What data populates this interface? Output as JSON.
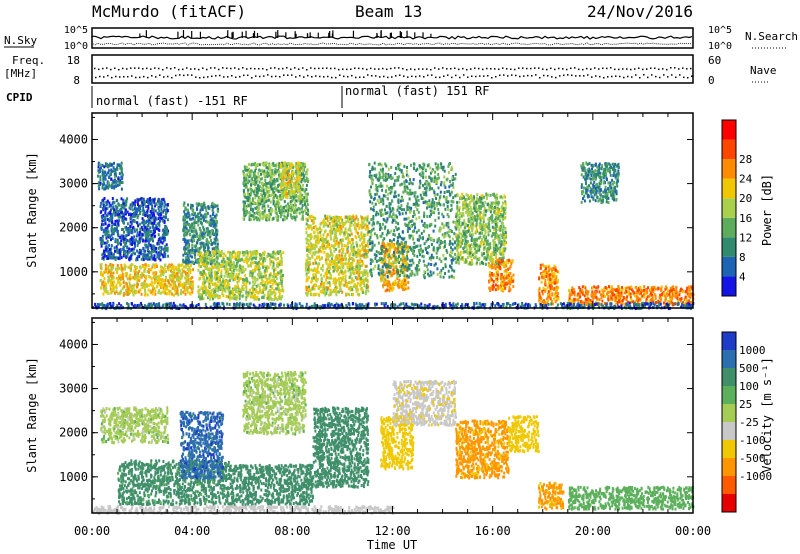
{
  "header": {
    "station": "McMurdo (fitACF)",
    "beam": "Beam 13",
    "date": "24/Nov/2016"
  },
  "left_labels": {
    "nsky": "N.Sky",
    "freq": "Freq.",
    "freq_unit": "[MHz]",
    "cpid": "CPID"
  },
  "right_labels": {
    "nsearch": "N.Search",
    "nave": "Nave"
  },
  "cpid_segments": [
    {
      "label": "normal (fast) -151 RF",
      "start_hour": 0,
      "end_hour": 10
    },
    {
      "label": "normal (fast) 151 RF",
      "start_hour": 10,
      "end_hour": 24
    }
  ],
  "noise_panel": {
    "left_ticks": [
      "10^5",
      "10^0"
    ],
    "right_ticks": [
      "10^5",
      "10^0"
    ]
  },
  "freq_panel": {
    "left_ticks": [
      "18",
      "8"
    ],
    "right_ticks": [
      "60",
      "0"
    ]
  },
  "range_axis": {
    "label": "Slant Range [km]",
    "ticks": [
      "1000",
      "2000",
      "3000",
      "4000"
    ],
    "tick_values": [
      1000,
      2000,
      3000,
      4000
    ],
    "min": 180,
    "max": 4600
  },
  "time_axis": {
    "label": "Time UT",
    "ticks": [
      "00:00",
      "04:00",
      "08:00",
      "12:00",
      "16:00",
      "20:00",
      "00:00"
    ],
    "tick_hours": [
      0,
      4,
      8,
      12,
      16,
      20,
      24
    ]
  },
  "power_colorbar": {
    "label": "Power [dB]",
    "ticks": [
      "4",
      "8",
      "12",
      "16",
      "20",
      "24",
      "28"
    ],
    "colors": [
      "#1414e6",
      "#1e64b4",
      "#2f8a6e",
      "#5cac5c",
      "#a8d04c",
      "#f0c800",
      "#ff8c00",
      "#ff4600",
      "#ff0000"
    ]
  },
  "velocity_colorbar": {
    "label": "Velocity [m s⁻¹]",
    "ticks": [
      "1000",
      "500",
      "100",
      "25",
      "-25",
      "-100",
      "-500",
      "-1000"
    ],
    "colors": [
      "#1e3cc8",
      "#2b6fb0",
      "#3f8f6a",
      "#5cb05c",
      "#a5cc55",
      "#c8c8c8",
      "#f0c800",
      "#ff9600",
      "#ff5a00",
      "#e60000"
    ]
  },
  "chart_data": [
    {
      "type": "heatmap",
      "title": "Power",
      "xlabel": "Time UT",
      "ylabel": "Slant Range [km]",
      "xlim": [
        0,
        24
      ],
      "ylim": [
        180,
        4600
      ],
      "colorbar": "Power [dB]",
      "regions": [
        {
          "t0": 0.3,
          "t1": 4.0,
          "r0": 500,
          "r1": 1200,
          "value": 22
        },
        {
          "t0": 0.3,
          "t1": 3.0,
          "r0": 1300,
          "r1": 2700,
          "value": 6
        },
        {
          "t0": 0.2,
          "t1": 1.2,
          "r0": 2900,
          "r1": 3500,
          "value": 8
        },
        {
          "t0": 3.6,
          "t1": 5.0,
          "r0": 1200,
          "r1": 2600,
          "value": 10
        },
        {
          "t0": 4.2,
          "t1": 7.6,
          "r0": 400,
          "r1": 1500,
          "value": 18
        },
        {
          "t0": 6.0,
          "t1": 8.6,
          "r0": 2200,
          "r1": 3500,
          "value": 14
        },
        {
          "t0": 7.5,
          "t1": 8.3,
          "r0": 2700,
          "r1": 3500,
          "value": 20
        },
        {
          "t0": 8.5,
          "t1": 11.0,
          "r0": 500,
          "r1": 2300,
          "value": 20
        },
        {
          "t0": 11.5,
          "t1": 12.6,
          "r0": 600,
          "r1": 1700,
          "value": 24
        },
        {
          "t0": 11.0,
          "t1": 14.5,
          "r0": 900,
          "r1": 3500,
          "value": 12
        },
        {
          "t0": 14.5,
          "t1": 16.5,
          "r0": 1200,
          "r1": 2800,
          "value": 16
        },
        {
          "t0": 15.8,
          "t1": 16.8,
          "r0": 600,
          "r1": 1300,
          "value": 26
        },
        {
          "t0": 17.8,
          "t1": 18.6,
          "r0": 300,
          "r1": 1200,
          "value": 26
        },
        {
          "t0": 19.0,
          "t1": 24.0,
          "r0": 280,
          "r1": 700,
          "value": 27
        },
        {
          "t0": 19.5,
          "t1": 21.0,
          "r0": 2600,
          "r1": 3500,
          "value": 10
        },
        {
          "t0": 0.0,
          "t1": 24.0,
          "r0": 200,
          "r1": 320,
          "value": 6
        }
      ]
    },
    {
      "type": "heatmap",
      "title": "Velocity",
      "xlabel": "Time UT",
      "ylabel": "Slant Range [km]",
      "xlim": [
        0,
        24
      ],
      "ylim": [
        180,
        4600
      ],
      "colorbar": "Velocity [m s⁻¹]",
      "regions": [
        {
          "t0": 1.0,
          "t1": 5.5,
          "r0": 400,
          "r1": 1400,
          "value": 150
        },
        {
          "t0": 0.3,
          "t1": 3.0,
          "r0": 1800,
          "r1": 2600,
          "value": 0
        },
        {
          "t0": 5.5,
          "t1": 8.8,
          "r0": 400,
          "r1": 1300,
          "value": 200
        },
        {
          "t0": 6.0,
          "t1": 8.5,
          "r0": 2000,
          "r1": 3400,
          "value": 0
        },
        {
          "t0": 3.5,
          "t1": 5.2,
          "r0": 1000,
          "r1": 2500,
          "value": 800
        },
        {
          "t0": 8.8,
          "t1": 11.0,
          "r0": 800,
          "r1": 2600,
          "value": 200
        },
        {
          "t0": 11.5,
          "t1": 12.8,
          "r0": 1200,
          "r1": 2400,
          "value": -200
        },
        {
          "t0": 12.0,
          "t1": 14.5,
          "r0": 2200,
          "r1": 3200,
          "value": -80
        },
        {
          "t0": 14.5,
          "t1": 16.6,
          "r0": 1000,
          "r1": 2300,
          "value": -700
        },
        {
          "t0": 16.6,
          "t1": 17.8,
          "r0": 1600,
          "r1": 2400,
          "value": -300
        },
        {
          "t0": 17.8,
          "t1": 18.8,
          "r0": 300,
          "r1": 900,
          "value": -600
        },
        {
          "t0": 19.0,
          "t1": 24.0,
          "r0": 300,
          "r1": 800,
          "value": 60
        },
        {
          "t0": 0.0,
          "t1": 12.0,
          "r0": 200,
          "r1": 360,
          "value": -60
        }
      ]
    }
  ]
}
